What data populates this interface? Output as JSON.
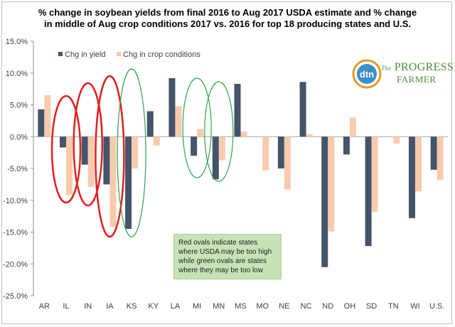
{
  "title_lines": [
    "% change in soybean yields from final 2016 to Aug 2017 USDA estimate and % change",
    "in middle of Aug crop conditions 2017 vs. 2016 for top 18 producing states and U.S."
  ],
  "note_lines": [
    "Red ovals indicate states",
    "where USDA may be too high",
    "while green ovals are states",
    "where they may be too low"
  ],
  "logo": {
    "mark": "dtn",
    "line1": "PROGRESSIVE",
    "line1_prefix": "The",
    "line2": "FARMER"
  },
  "colors": {
    "yield": "#44546a",
    "conditions": "#f8cbad",
    "red_oval": "#e02020",
    "green_oval": "#2aa44a",
    "grid": "#d9d9d9"
  },
  "chart_data": {
    "type": "bar",
    "categories": [
      "AR",
      "IL",
      "IN",
      "IA",
      "KS",
      "KY",
      "LA",
      "MI",
      "MN",
      "MS",
      "MO",
      "NE",
      "NC",
      "ND",
      "OH",
      "SD",
      "TN",
      "WI",
      "U.S."
    ],
    "series": [
      {
        "name": "Chg in yield",
        "values": [
          4.3,
          -1.7,
          -4.4,
          -7.5,
          -14.5,
          4.0,
          9.2,
          -3.0,
          -6.7,
          8.3,
          0,
          -5.0,
          8.6,
          -20.5,
          -2.8,
          -17.2,
          0,
          -12.8,
          -5.2
        ]
      },
      {
        "name": "Chg in crop conditions",
        "values": [
          6.5,
          -9.2,
          -7.9,
          -14.2,
          -5.0,
          -1.4,
          4.8,
          1.2,
          -3.7,
          0.8,
          -5.3,
          -8.3,
          0.4,
          -14.9,
          3.0,
          -11.8,
          -1.1,
          -8.6,
          -6.8
        ]
      }
    ],
    "ylim": [
      -25,
      15
    ],
    "yticks": [
      15,
      10,
      5,
      0,
      -5,
      -10,
      -15,
      -20,
      -25
    ],
    "ytick_labels": [
      "15.0%",
      "10.0%",
      "5.0%",
      "0.0%",
      "-5.0%",
      "-10.0%",
      "-15.0%",
      "-20.0%",
      "-25.0%"
    ],
    "legend_position": "top-left",
    "grid": false,
    "annotations": {
      "red_ovals": [
        "IL",
        "IN",
        "IA"
      ],
      "green_ovals": [
        "KS",
        "MI",
        "MN"
      ]
    }
  }
}
